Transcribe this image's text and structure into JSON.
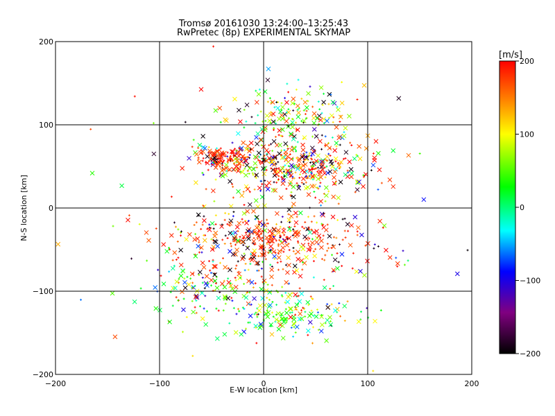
{
  "chart_data": {
    "type": "scatter",
    "title": "Tromsø 20161030 13:24:00–13:25:43",
    "subtitle": "RwPretec (8p) EXPERIMENTAL SKYMAP",
    "xlabel": "E-W location [km]",
    "ylabel": "N-S location [km]",
    "xlim": [
      -200,
      200
    ],
    "ylim": [
      -200,
      200
    ],
    "xticks": [
      "−200",
      "−100",
      "0",
      "100",
      "200"
    ],
    "yticks": [
      "200",
      "100",
      "0",
      "−100",
      "−200"
    ],
    "xtick_values": [
      -200,
      -100,
      0,
      100,
      200
    ],
    "ytick_values": [
      200,
      100,
      0,
      -100,
      -200
    ],
    "grid": true,
    "colorbar": {
      "label": "[m/s]",
      "range": [
        -200,
        200
      ],
      "ticks": [
        "200",
        "100",
        "0",
        "−100",
        "−200"
      ],
      "tick_values": [
        200,
        100,
        0,
        -100,
        -200
      ],
      "colors": [
        "#000000",
        "#800080",
        "#0000ff",
        "#00ffff",
        "#00ff00",
        "#ffff00",
        "#ff8000",
        "#ff0000"
      ]
    },
    "point_summary": {
      "markers": [
        "x",
        "+"
      ],
      "clusters": [
        {
          "x": 20,
          "y": 50,
          "velocity": "mixed (≈ −200 to 200)"
        },
        {
          "x": 5,
          "y": -40,
          "velocity": "mixed, mostly ≈ 150–200"
        },
        {
          "x": 30,
          "y": -130,
          "velocity": "≈ 0–100"
        },
        {
          "x": 30,
          "y": 110,
          "velocity": "≈ 0–100"
        }
      ]
    }
  }
}
